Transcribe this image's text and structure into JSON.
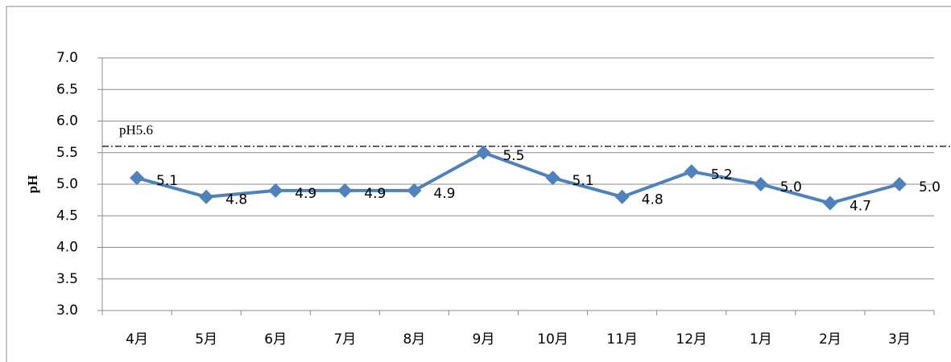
{
  "chart_data": {
    "type": "line",
    "y_label": "pH",
    "categories": [
      "4月",
      "5月",
      "6月",
      "7月",
      "8月",
      "9月",
      "10月",
      "11月",
      "12月",
      "1月",
      "2月",
      "3月"
    ],
    "series": [
      {
        "color": "#4f81bd",
        "values": [
          5.1,
          4.8,
          4.9,
          4.9,
          4.9,
          5.5,
          5.1,
          4.8,
          5.2,
          5.0,
          4.7,
          5.0
        ],
        "value_labels": [
          "5.1",
          "4.8",
          "4.9",
          "4.9",
          "4.9",
          "5.5",
          "5.1",
          "4.8",
          "5.2",
          "5.0",
          "4.7",
          "5.0"
        ]
      }
    ],
    "ylim": [
      3,
      7
    ],
    "yticks": [
      {
        "value": 3,
        "label": "3.0"
      },
      {
        "value": 3.5,
        "label": "3.5"
      },
      {
        "value": 4,
        "label": "4.0"
      },
      {
        "value": 4.5,
        "label": "4.5"
      },
      {
        "value": 5,
        "label": "5.0"
      },
      {
        "value": 5.5,
        "label": "5.5"
      },
      {
        "value": 6,
        "label": "6.0"
      },
      {
        "value": 6.5,
        "label": "6.5"
      },
      {
        "value": 7,
        "label": "7.0"
      }
    ],
    "grid": true,
    "reference_line": {
      "value": 5.6,
      "label": "pH5.6"
    }
  }
}
